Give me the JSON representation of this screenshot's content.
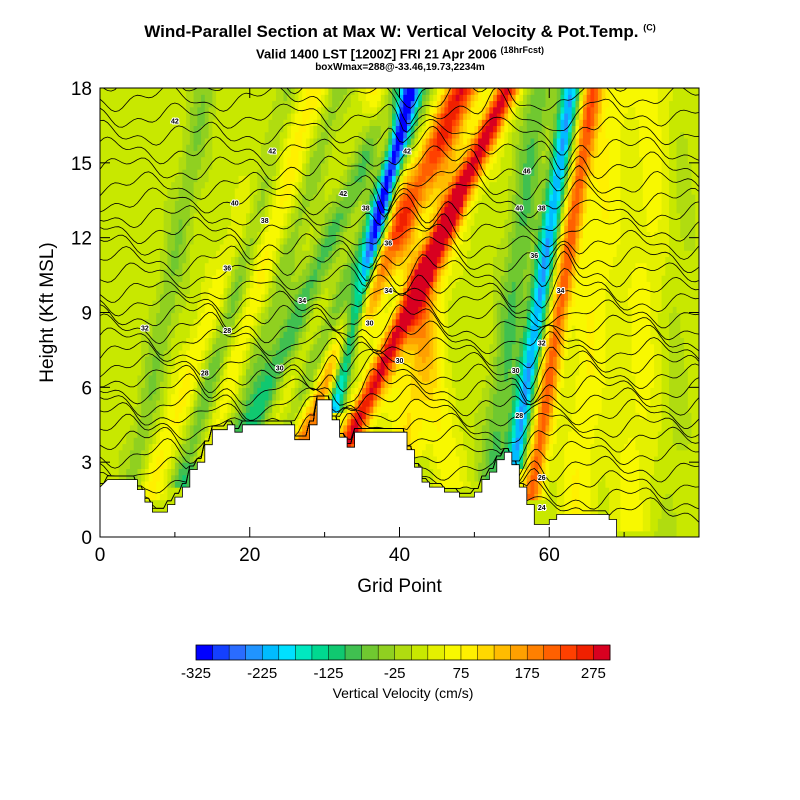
{
  "chart_data": {
    "type": "heatmap",
    "title": "Wind-Parallel Section at Max W: Vertical Velocity & Pot.Temp.",
    "title_mark": "(C)",
    "subtitle": "Valid 1400 LST [1200Z] FRI 21 Apr 2006",
    "subtitle_note": "(18hrFcst)",
    "subtitle2": "boxWmax=288@-33.46,19.73,2234m",
    "xlabel": "Grid Point",
    "ylabel": "Height (Kft MSL)",
    "xlim": [
      0,
      80
    ],
    "ylim": [
      0,
      18
    ],
    "xticks": [
      "0",
      "20",
      "40",
      "60"
    ],
    "yticks": [
      "0",
      "3",
      "6",
      "9",
      "12",
      "15",
      "18"
    ],
    "colorbar": {
      "label": "Vertical Velocity (cm/s)",
      "tick_labels": [
        "-325",
        "-225",
        "-125",
        "-25",
        "75",
        "175",
        "275"
      ],
      "levels": [
        -325,
        -300,
        -275,
        -250,
        -225,
        -200,
        -175,
        -150,
        -125,
        -100,
        -75,
        -50,
        -25,
        0,
        25,
        50,
        75,
        100,
        125,
        150,
        175,
        200,
        225,
        250,
        275,
        300
      ],
      "colors": [
        "#0000ff",
        "#1440ff",
        "#2a6cff",
        "#2094ff",
        "#00bcff",
        "#00e0ff",
        "#00e8c0",
        "#00d890",
        "#10c870",
        "#40c050",
        "#70c830",
        "#90d020",
        "#b0dc10",
        "#c8e800",
        "#e4f000",
        "#f8f800",
        "#fff000",
        "#ffd800",
        "#ffbc00",
        "#ffa000",
        "#ff8000",
        "#ff6000",
        "#ff4000",
        "#f02000",
        "#d80020"
      ]
    },
    "terrain": [
      [
        0,
        2.0
      ],
      [
        1,
        2.3
      ],
      [
        5,
        2.3
      ],
      [
        5,
        1.9
      ],
      [
        6,
        1.9
      ],
      [
        6,
        1.4
      ],
      [
        7,
        1.4
      ],
      [
        7,
        1.0
      ],
      [
        9,
        1.0
      ],
      [
        9,
        1.3
      ],
      [
        10,
        1.3
      ],
      [
        10,
        1.6
      ],
      [
        11,
        1.6
      ],
      [
        11,
        2.0
      ],
      [
        12,
        2.0
      ],
      [
        12,
        2.7
      ],
      [
        13,
        2.7
      ],
      [
        13,
        3.0
      ],
      [
        14,
        3.0
      ],
      [
        14,
        3.7
      ],
      [
        15,
        3.7
      ],
      [
        15,
        4.3
      ],
      [
        17,
        4.3
      ],
      [
        17,
        4.5
      ],
      [
        18,
        4.5
      ],
      [
        18,
        4.2
      ],
      [
        19,
        4.2
      ],
      [
        19,
        4.5
      ],
      [
        26,
        4.5
      ],
      [
        26,
        3.9
      ],
      [
        28,
        3.9
      ],
      [
        28,
        4.5
      ],
      [
        29,
        4.5
      ],
      [
        29,
        5.5
      ],
      [
        31,
        5.5
      ],
      [
        31,
        4.7
      ],
      [
        32,
        4.7
      ],
      [
        32,
        4.0
      ],
      [
        33,
        4.0
      ],
      [
        33,
        3.6
      ],
      [
        34,
        3.6
      ],
      [
        34,
        4.2
      ],
      [
        41,
        4.2
      ],
      [
        41,
        3.5
      ],
      [
        42,
        3.5
      ],
      [
        42,
        2.8
      ],
      [
        43,
        2.8
      ],
      [
        43,
        2.2
      ],
      [
        44,
        2.2
      ],
      [
        44,
        2.0
      ],
      [
        46,
        2.0
      ],
      [
        46,
        1.8
      ],
      [
        48,
        1.8
      ],
      [
        48,
        1.6
      ],
      [
        50,
        1.6
      ],
      [
        50,
        1.8
      ],
      [
        51,
        1.8
      ],
      [
        51,
        2.3
      ],
      [
        52,
        2.3
      ],
      [
        52,
        2.6
      ],
      [
        53,
        2.6
      ],
      [
        53,
        3.1
      ],
      [
        54,
        3.1
      ],
      [
        54,
        3.4
      ],
      [
        55,
        3.4
      ],
      [
        55,
        2.9
      ],
      [
        56,
        2.9
      ],
      [
        56,
        2.0
      ],
      [
        57,
        2.0
      ],
      [
        57,
        1.3
      ],
      [
        58,
        1.3
      ],
      [
        58,
        0.5
      ],
      [
        60,
        0.5
      ],
      [
        60,
        0.7
      ],
      [
        61,
        0.7
      ],
      [
        61,
        0.9
      ],
      [
        68,
        0.9
      ],
      [
        68,
        0.7
      ],
      [
        69,
        0.7
      ],
      [
        69,
        0.0
      ],
      [
        80,
        0.0
      ]
    ],
    "updraft_bands": [
      {
        "x": 4.5,
        "lean": 0.6,
        "width": 1.6,
        "w": -60,
        "from": 2.0
      },
      {
        "x": 6.8,
        "lean": 1.2,
        "width": 2.0,
        "w": 70,
        "from": 2.0
      },
      {
        "x": 11.5,
        "lean": 0.9,
        "width": 1.8,
        "w": -110,
        "from": 2.5
      },
      {
        "x": 14.5,
        "lean": 1.0,
        "width": 2.4,
        "w": 80,
        "from": 3.5
      },
      {
        "x": 17.8,
        "lean": 1.0,
        "width": 1.8,
        "w": -70,
        "from": 4.3
      },
      {
        "x": 20.5,
        "lean": 1.4,
        "width": 2.0,
        "w": -150,
        "from": 4.5
      },
      {
        "x": 22.5,
        "lean": 1.2,
        "width": 2.6,
        "w": 60,
        "from": 4.5
      },
      {
        "x": 25.2,
        "lean": 1.3,
        "width": 1.7,
        "w": -90,
        "from": 4.2
      },
      {
        "x": 27.6,
        "lean": 1.5,
        "width": 2.2,
        "w": 190,
        "from": 4.2
      },
      {
        "x": 31.4,
        "lean": 0.8,
        "width": 1.2,
        "w": -300,
        "from": 5.4
      },
      {
        "x": 33.4,
        "lean": 1.5,
        "width": 1.6,
        "w": 260,
        "from": 4.0
      },
      {
        "x": 36.0,
        "lean": 1.4,
        "width": 2.0,
        "w": 30,
        "from": 4.2
      },
      {
        "x": 41.0,
        "lean": 0.5,
        "width": 2.4,
        "w": 85,
        "from": 3.8
      },
      {
        "x": 46.5,
        "lean": -0.6,
        "width": 2.0,
        "w": 60,
        "from": 2.5
      },
      {
        "x": 52.5,
        "lean": 0.4,
        "width": 1.8,
        "w": -90,
        "from": 2.8
      },
      {
        "x": 55.6,
        "lean": 0.5,
        "width": 1.3,
        "w": -240,
        "from": 3.3
      },
      {
        "x": 57.8,
        "lean": 0.5,
        "width": 1.4,
        "w": 200,
        "from": 2.0
      },
      {
        "x": 63.5,
        "lean": 0.3,
        "width": 2.5,
        "w": 60,
        "from": 1.0
      },
      {
        "x": 71.0,
        "lean": 0.2,
        "width": 3.0,
        "w": 45,
        "from": 0.8
      },
      {
        "x": 76.0,
        "lean": 0.1,
        "width": 2.0,
        "w": -20,
        "from": 0.5
      }
    ],
    "contour_labels": [
      {
        "text": "42",
        "x": 10,
        "y": 16.7
      },
      {
        "text": "42",
        "x": 23,
        "y": 15.5
      },
      {
        "text": "40",
        "x": 18,
        "y": 13.4
      },
      {
        "text": "38",
        "x": 22,
        "y": 12.7
      },
      {
        "text": "36",
        "x": 17,
        "y": 10.8
      },
      {
        "text": "34",
        "x": 27,
        "y": 9.5
      },
      {
        "text": "32",
        "x": 6,
        "y": 8.4
      },
      {
        "text": "28",
        "x": 17,
        "y": 8.3
      },
      {
        "text": "28",
        "x": 14,
        "y": 6.6
      },
      {
        "text": "30",
        "x": 24,
        "y": 6.8
      },
      {
        "text": "42",
        "x": 32.5,
        "y": 13.8
      },
      {
        "text": "38",
        "x": 35.5,
        "y": 13.2
      },
      {
        "text": "36",
        "x": 38.5,
        "y": 11.8
      },
      {
        "text": "34",
        "x": 38.5,
        "y": 9.9
      },
      {
        "text": "30",
        "x": 36,
        "y": 8.6
      },
      {
        "text": "30",
        "x": 40,
        "y": 7.1
      },
      {
        "text": "42",
        "x": 41,
        "y": 15.5
      },
      {
        "text": "46",
        "x": 57,
        "y": 14.7
      },
      {
        "text": "40",
        "x": 56,
        "y": 13.2
      },
      {
        "text": "38",
        "x": 59,
        "y": 13.2
      },
      {
        "text": "36",
        "x": 58,
        "y": 11.3
      },
      {
        "text": "34",
        "x": 61.5,
        "y": 9.9
      },
      {
        "text": "32",
        "x": 59,
        "y": 7.8
      },
      {
        "text": "30",
        "x": 55.5,
        "y": 6.7
      },
      {
        "text": "28",
        "x": 56,
        "y": 4.9
      },
      {
        "text": "26",
        "x": 59,
        "y": 2.4
      },
      {
        "text": "24",
        "x": 59,
        "y": 1.2
      }
    ]
  }
}
